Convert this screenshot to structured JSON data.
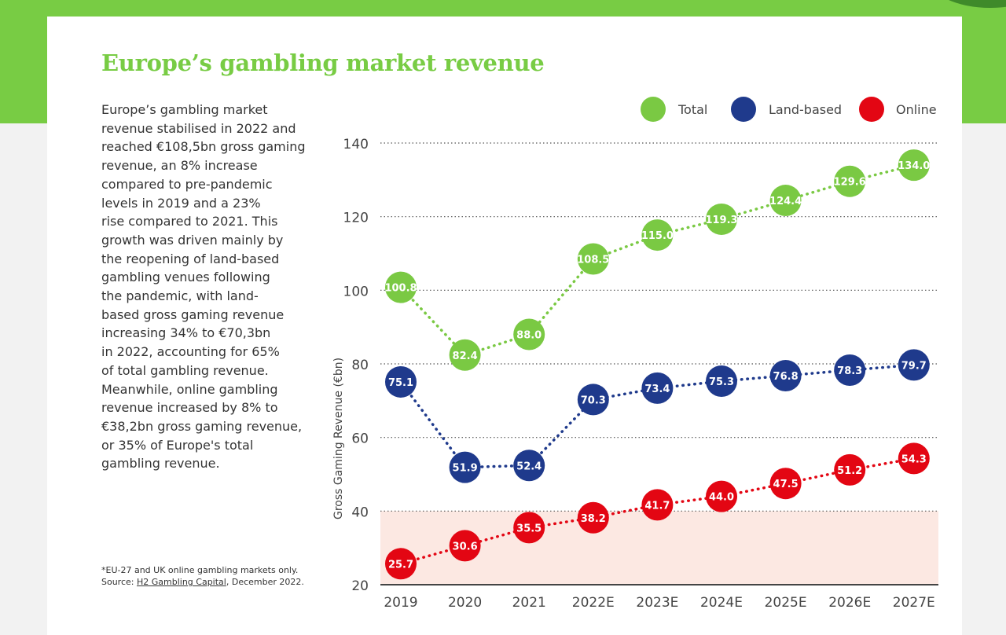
{
  "title": "Europe’s gambling market revenue",
  "body_lines": [
    "Europe’s gambling market",
    "revenue stabilised in 2022 and",
    "reached €108,5bn gross gaming",
    "revenue, an 8% increase",
    "compared to pre-pandemic",
    "levels in 2019 and a 23%",
    "rise compared to 2021. This",
    "growth was driven mainly by",
    "the reopening of land-based",
    "gambling venues following",
    "the pandemic, with land-",
    "based gross gaming revenue",
    "increasing 34% to €70,3bn",
    "in 2022, accounting for 65%",
    "of total gambling revenue.",
    "Meanwhile, online gambling",
    "revenue increased by 8% to",
    "€38,2bn gross gaming revenue,",
    "or 35% of Europe's total",
    "gambling revenue."
  ],
  "footnote": {
    "line1": "*EU-27 and UK online gambling markets only.",
    "source_prefix": "Source: ",
    "source_link": "H2 Gambling Capital",
    "source_suffix": ", December 2022."
  },
  "colors": {
    "brand_green": "#78cc44",
    "total": "#7ac943",
    "land_based": "#1f3a8c",
    "online": "#e30613",
    "highlight_band": "#fce8e2"
  },
  "chart_data": {
    "type": "line",
    "categories": [
      "2019",
      "2020",
      "2021",
      "2022E",
      "2023E",
      "2024E",
      "2025E",
      "2026E",
      "2027E"
    ],
    "series": [
      {
        "name": "Total",
        "color": "#7ac943",
        "values": [
          100.8,
          82.4,
          88.0,
          108.5,
          115.0,
          119.3,
          124.4,
          129.6,
          134.0
        ],
        "labels": [
          "100.8",
          "82.4",
          "88.0",
          "108.5",
          "115.0",
          "119.3",
          "124.4",
          "129.6",
          "134.0"
        ]
      },
      {
        "name": "Land-based",
        "color": "#1f3a8c",
        "values": [
          75.1,
          51.9,
          52.4,
          70.3,
          73.4,
          75.3,
          76.8,
          78.3,
          79.7
        ],
        "labels": [
          "75.1",
          "51.9",
          "52.4",
          "70.3",
          "73.4",
          "75.3",
          "76.8",
          "78.3",
          "79.7"
        ]
      },
      {
        "name": "Online",
        "color": "#e30613",
        "values": [
          25.7,
          30.6,
          35.5,
          38.2,
          41.7,
          44.0,
          47.5,
          51.2,
          54.3
        ],
        "labels": [
          "25.7",
          "30.6",
          "35.5",
          "38.2",
          "41.7",
          "44.0",
          "47.5",
          "51.2",
          "54.3"
        ]
      }
    ],
    "ylabel": "Gross Gaming Revenue (€bn)",
    "xlabel": "",
    "ylim": [
      20,
      140
    ],
    "yticks": [
      20,
      40,
      60,
      80,
      100,
      120,
      140
    ],
    "grid": true,
    "legend": "top-right",
    "highlight_band_range": [
      20,
      40
    ]
  }
}
